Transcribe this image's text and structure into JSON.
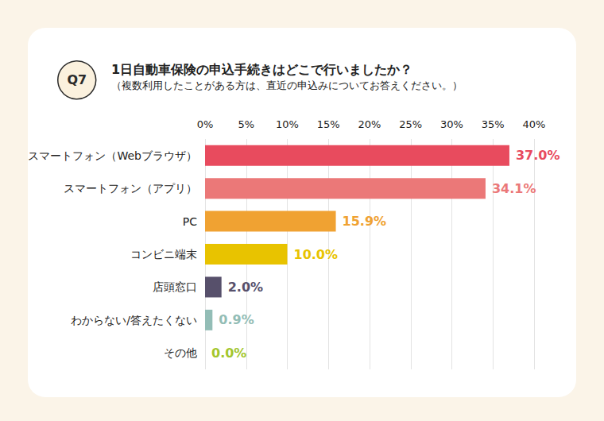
{
  "chart_data": {
    "type": "bar",
    "orientation": "horizontal",
    "title": "1日自動車保険の申込手続きはどこで行いましたか？",
    "subtitle": "（複数利用したことがある方は、直近の申込みについてお答えください。）",
    "annotations": [
      "Q7"
    ],
    "categories": [
      "スマートフォン（Webブラウザ）",
      "スマートフォン（アプリ）",
      "PC",
      "コンビニ端末",
      "店頭窓口",
      "わからない/答えたくない",
      "その他"
    ],
    "values": [
      37.0,
      34.1,
      15.9,
      10.0,
      2.0,
      0.9,
      0.0
    ],
    "value_labels": [
      "37.0%",
      "34.1%",
      "15.9%",
      "10.0%",
      "2.0%",
      "0.9%",
      "0.0%"
    ],
    "colors": [
      "#e84b5e",
      "#eb7878",
      "#f0a232",
      "#e8c300",
      "#57506b",
      "#93bdb6",
      "#a3c62c"
    ],
    "xlim": [
      0,
      40
    ],
    "xticks": [
      {
        "value": 0,
        "label": "0%"
      },
      {
        "value": 5,
        "label": "5%"
      },
      {
        "value": 10,
        "label": "10%"
      },
      {
        "value": 15,
        "label": "15%"
      },
      {
        "value": 20,
        "label": "20%"
      },
      {
        "value": 25,
        "label": "25%"
      },
      {
        "value": 30,
        "label": "30%"
      },
      {
        "value": 35,
        "label": "35%"
      },
      {
        "value": 40,
        "label": "40%"
      }
    ],
    "grid": true,
    "data_labels": true
  }
}
